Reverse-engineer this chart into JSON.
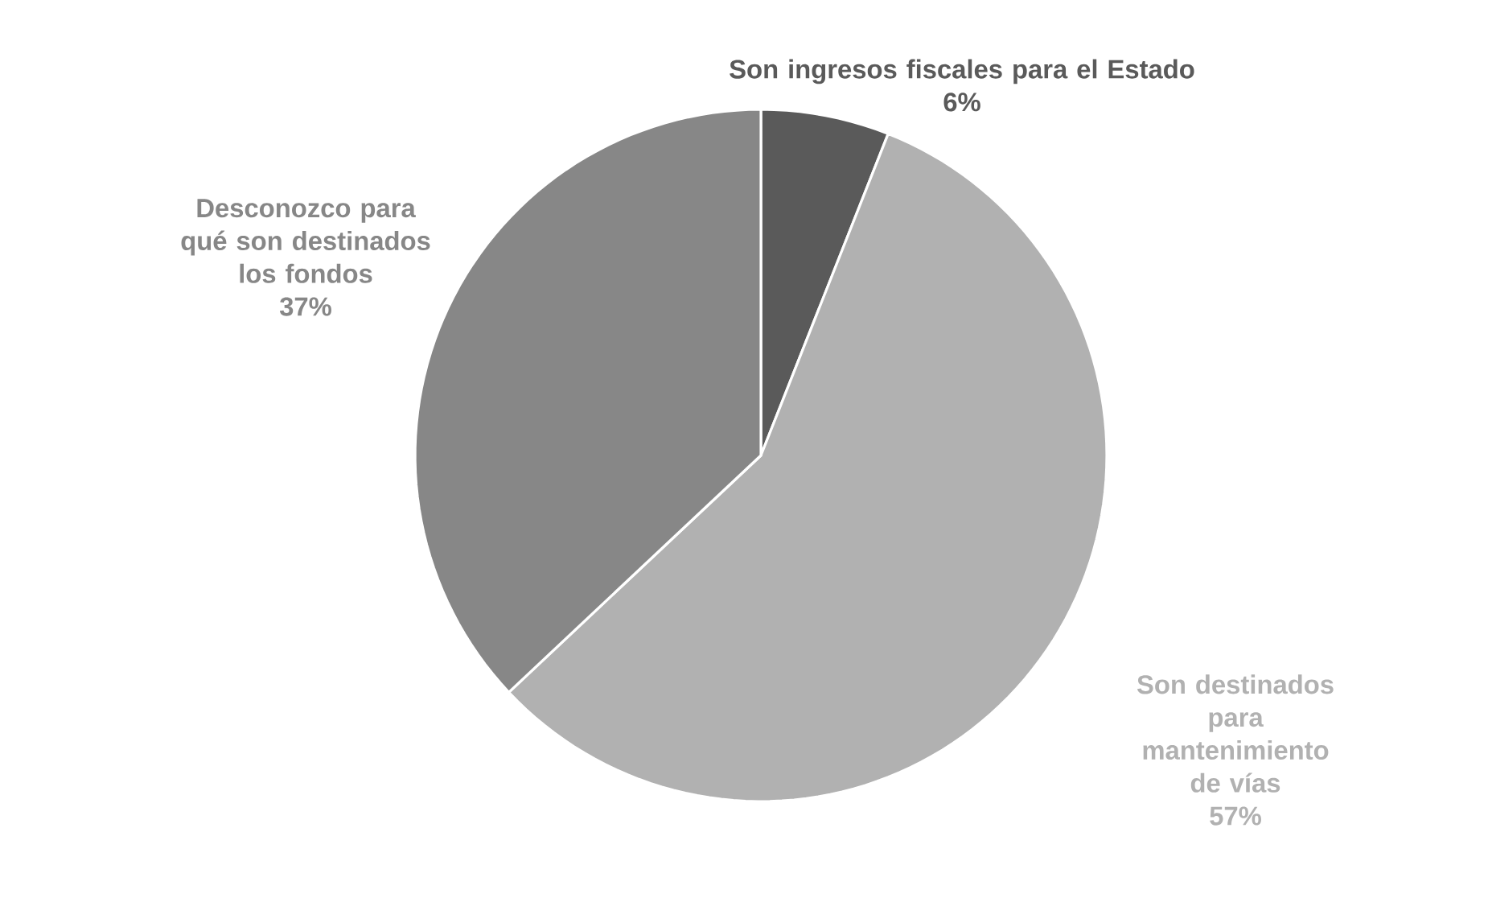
{
  "chart_data": {
    "type": "pie",
    "categories": [
      "Son ingresos fiscales para el Estado",
      "Son destinados para mantenimiento de vías",
      "Desconozco para qué son destinados los fondos"
    ],
    "values": [
      6,
      57,
      37
    ],
    "value_labels": [
      "6%",
      "57%",
      "37%"
    ],
    "colors": [
      "#5a5a5a",
      "#b1b1b1",
      "#878787"
    ]
  }
}
